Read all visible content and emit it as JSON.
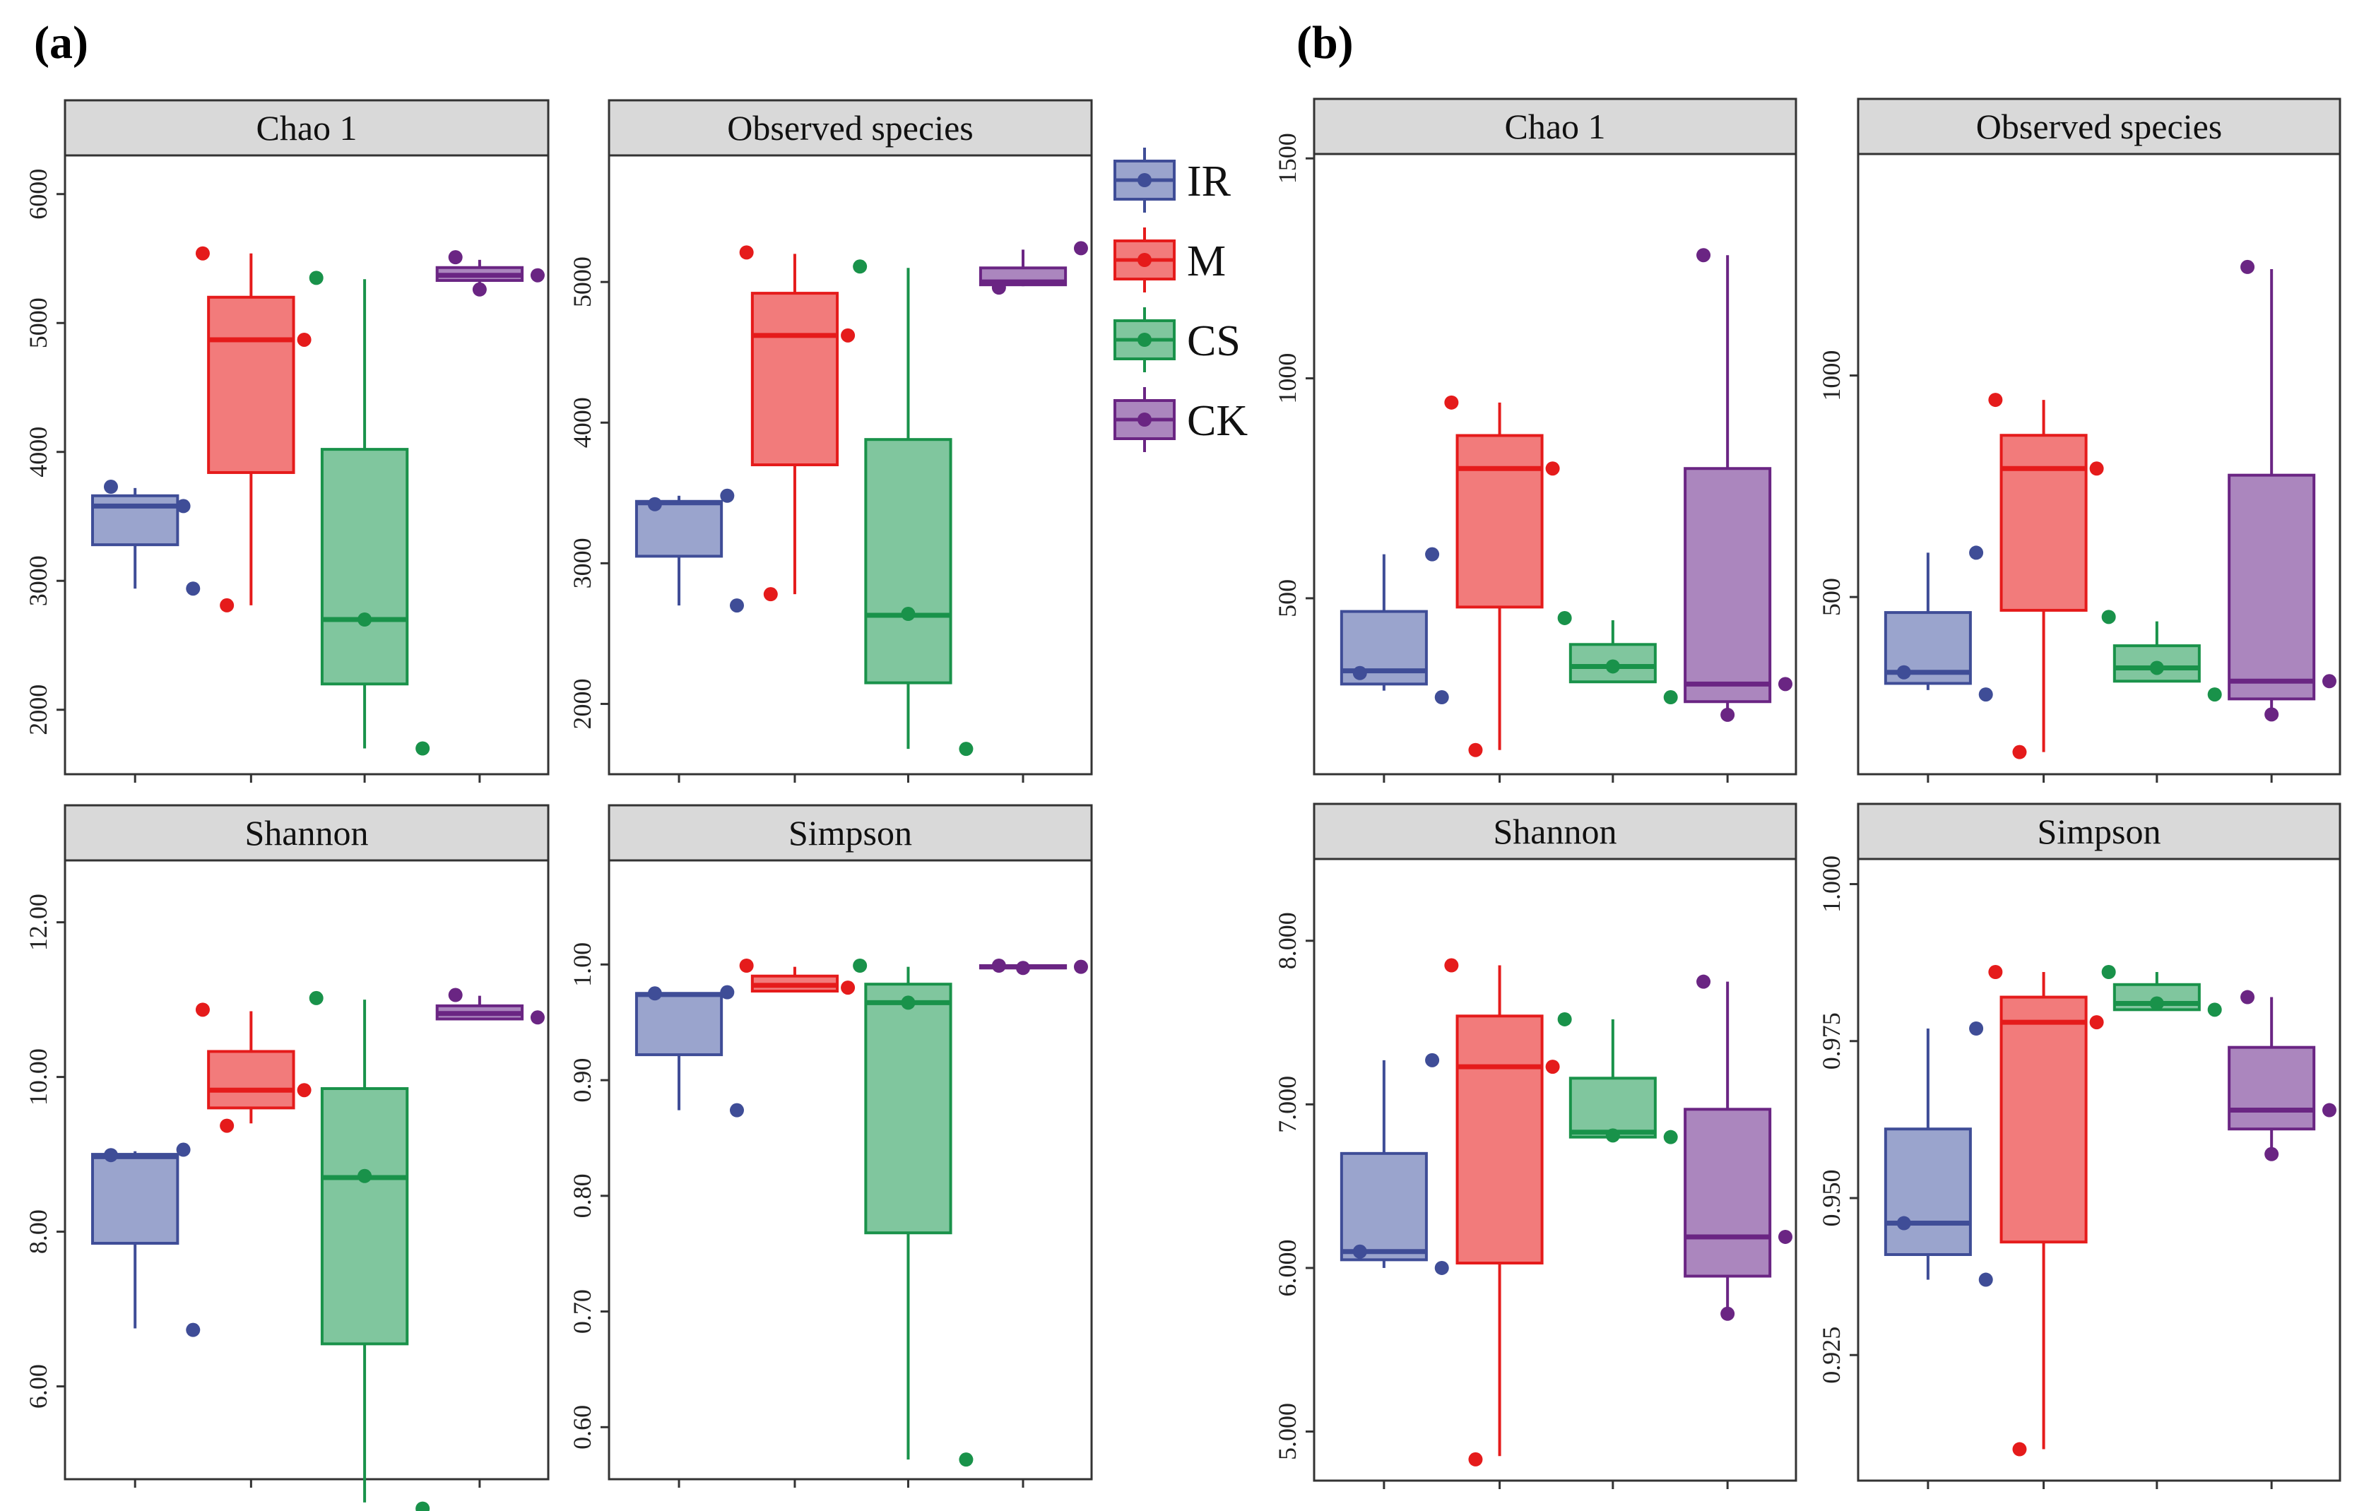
{
  "figure_labels": [
    "(a)",
    "(b)"
  ],
  "colors": {
    "IR": {
      "fill": "#9aa4cd",
      "stroke": "#3f4d97",
      "point": "#3f4d97"
    },
    "M": {
      "fill": "#f27b7b",
      "stroke": "#e51b1b",
      "point": "#e51b1b"
    },
    "CS": {
      "fill": "#80c69e",
      "stroke": "#19924a",
      "point": "#19924a"
    },
    "CK": {
      "fill": "#ab86be",
      "stroke": "#6a2583",
      "point": "#6a2583"
    },
    "strip_fill": "#d9d9d9",
    "frame": "#333333"
  },
  "legend": {
    "entries": [
      {
        "key": "IR",
        "label": "IR"
      },
      {
        "key": "M",
        "label": "M"
      },
      {
        "key": "CS",
        "label": "CS"
      },
      {
        "key": "CK",
        "label": "CK"
      }
    ]
  },
  "chart_data": [
    {
      "id": "a-chao1",
      "group": "(a)",
      "type": "boxplot",
      "title": "Chao 1",
      "ylim": [
        1500,
        6300
      ],
      "yticks": [
        2000,
        3000,
        4000,
        5000,
        6000
      ],
      "ytick_labels": [
        "2000",
        "3000",
        "4000",
        "5000",
        "6000"
      ],
      "series": [
        {
          "name": "IR",
          "whisker_low": 2940,
          "q1": 3280,
          "median": 3580,
          "q3": 3660,
          "whisker_high": 3720,
          "points": [
            3580,
            3730,
            2940
          ]
        },
        {
          "name": "M",
          "whisker_low": 2810,
          "q1": 3840,
          "median": 4870,
          "q3": 5200,
          "whisker_high": 5540,
          "points": [
            5540,
            4870,
            2810
          ]
        },
        {
          "name": "CS",
          "whisker_low": 1700,
          "q1": 2200,
          "median": 2700,
          "q3": 4020,
          "whisker_high": 5340,
          "points": [
            5350,
            2700,
            1700
          ]
        },
        {
          "name": "CK",
          "whisker_low": 5290,
          "q1": 5330,
          "median": 5370,
          "q3": 5430,
          "whisker_high": 5490,
          "points": [
            5510,
            5370,
            5260
          ]
        }
      ]
    },
    {
      "id": "a-observed",
      "group": "(a)",
      "type": "boxplot",
      "title": "Observed species",
      "ylim": [
        1500,
        5900
      ],
      "yticks": [
        2000,
        3000,
        4000,
        5000
      ],
      "ytick_labels": [
        "2000",
        "3000",
        "4000",
        "5000"
      ],
      "series": [
        {
          "name": "IR",
          "whisker_low": 2700,
          "q1": 3050,
          "median": 3430,
          "q3": 3440,
          "whisker_high": 3480,
          "points": [
            3480,
            3420,
            2700
          ]
        },
        {
          "name": "M",
          "whisker_low": 2780,
          "q1": 3700,
          "median": 4620,
          "q3": 4920,
          "whisker_high": 5200,
          "points": [
            5210,
            4620,
            2780
          ]
        },
        {
          "name": "CS",
          "whisker_low": 1680,
          "q1": 2150,
          "median": 2630,
          "q3": 3880,
          "whisker_high": 5100,
          "points": [
            5110,
            2640,
            1680
          ]
        },
        {
          "name": "CK",
          "whisker_low": 4970,
          "q1": 4980,
          "median": 5000,
          "q3": 5100,
          "whisker_high": 5230,
          "points": [
            4960,
            5240
          ]
        }
      ]
    },
    {
      "id": "a-shannon",
      "group": "(a)",
      "type": "boxplot",
      "title": "Shannon",
      "ylim": [
        4.8,
        12.8
      ],
      "yticks": [
        6,
        8,
        10,
        12
      ],
      "ytick_labels": [
        "6.00",
        "8.00",
        "10.00",
        "12.00"
      ],
      "series": [
        {
          "name": "IR",
          "whisker_low": 6.75,
          "q1": 7.85,
          "median": 8.97,
          "q3": 9.0,
          "whisker_high": 9.04,
          "points": [
            9.06,
            8.99,
            6.73
          ]
        },
        {
          "name": "M",
          "whisker_low": 9.4,
          "q1": 9.6,
          "median": 9.83,
          "q3": 10.33,
          "whisker_high": 10.85,
          "points": [
            10.87,
            9.83,
            9.37
          ]
        },
        {
          "name": "CS",
          "whisker_low": 4.5,
          "q1": 6.55,
          "median": 8.7,
          "q3": 9.85,
          "whisker_high": 11.0,
          "points": [
            11.02,
            8.72,
            4.42
          ]
        },
        {
          "name": "CK",
          "whisker_low": 10.74,
          "q1": 10.75,
          "median": 10.82,
          "q3": 10.92,
          "whisker_high": 11.05,
          "points": [
            11.06,
            10.77
          ]
        }
      ]
    },
    {
      "id": "a-simpson",
      "group": "(a)",
      "type": "boxplot",
      "title": "Simpson",
      "ylim": [
        0.555,
        1.09
      ],
      "yticks": [
        0.6,
        0.7,
        0.8,
        0.9,
        1.0
      ],
      "ytick_labels": [
        "0.60",
        "0.70",
        "0.80",
        "0.90",
        "1.00"
      ],
      "series": [
        {
          "name": "IR",
          "whisker_low": 0.874,
          "q1": 0.922,
          "median": 0.974,
          "q3": 0.975,
          "whisker_high": 0.976,
          "points": [
            0.976,
            0.975,
            0.874
          ]
        },
        {
          "name": "M",
          "whisker_low": 0.977,
          "q1": 0.977,
          "median": 0.982,
          "q3": 0.99,
          "whisker_high": 0.998,
          "points": [
            0.999,
            0.98
          ]
        },
        {
          "name": "CS",
          "whisker_low": 0.572,
          "q1": 0.768,
          "median": 0.967,
          "q3": 0.983,
          "whisker_high": 0.998,
          "points": [
            0.999,
            0.967,
            0.572
          ]
        },
        {
          "name": "CK",
          "whisker_low": 0.997,
          "q1": 0.997,
          "median": 0.998,
          "q3": 0.999,
          "whisker_high": 1.0,
          "points": [
            0.999,
            0.998,
            0.997
          ]
        }
      ]
    },
    {
      "id": "b-chao1",
      "group": "(b)",
      "type": "boxplot",
      "title": "Chao 1",
      "ylim": [
        100,
        1510
      ],
      "yticks": [
        500,
        1000,
        1500
      ],
      "ytick_labels": [
        "500",
        "1000",
        "1500"
      ],
      "series": [
        {
          "name": "IR",
          "whisker_low": 290,
          "q1": 305,
          "median": 335,
          "q3": 470,
          "whisker_high": 600,
          "points": [
            600,
            330,
            275
          ]
        },
        {
          "name": "M",
          "whisker_low": 155,
          "q1": 480,
          "median": 795,
          "q3": 870,
          "whisker_high": 945,
          "points": [
            945,
            795,
            155
          ]
        },
        {
          "name": "CS",
          "whisker_low": 310,
          "q1": 310,
          "median": 345,
          "q3": 395,
          "whisker_high": 450,
          "points": [
            455,
            345,
            275
          ]
        },
        {
          "name": "CK",
          "whisker_low": 235,
          "q1": 265,
          "median": 305,
          "q3": 795,
          "whisker_high": 1280,
          "points": [
            1280,
            305,
            235
          ]
        }
      ]
    },
    {
      "id": "b-observed",
      "group": "(b)",
      "type": "boxplot",
      "title": "Observed species",
      "ylim": [
        100,
        1500
      ],
      "yticks": [
        500,
        1000
      ],
      "ytick_labels": [
        "500",
        "1000"
      ],
      "series": [
        {
          "name": "IR",
          "whisker_low": 290,
          "q1": 305,
          "median": 330,
          "q3": 465,
          "whisker_high": 600,
          "points": [
            600,
            330,
            280
          ]
        },
        {
          "name": "M",
          "whisker_low": 150,
          "q1": 470,
          "median": 790,
          "q3": 865,
          "whisker_high": 945,
          "points": [
            945,
            790,
            150
          ]
        },
        {
          "name": "CS",
          "whisker_low": 310,
          "q1": 310,
          "median": 340,
          "q3": 390,
          "whisker_high": 445,
          "points": [
            455,
            340,
            280
          ]
        },
        {
          "name": "CK",
          "whisker_low": 235,
          "q1": 270,
          "median": 310,
          "q3": 775,
          "whisker_high": 1240,
          "points": [
            1245,
            310,
            235
          ]
        }
      ]
    },
    {
      "id": "b-shannon",
      "group": "(b)",
      "type": "boxplot",
      "title": "Shannon",
      "ylim": [
        4.7,
        8.5
      ],
      "yticks": [
        5,
        6,
        7,
        8
      ],
      "ytick_labels": [
        "5.000",
        "6.000",
        "7.000",
        "8.000"
      ],
      "series": [
        {
          "name": "IR",
          "whisker_low": 6.0,
          "q1": 6.05,
          "median": 6.1,
          "q3": 6.7,
          "whisker_high": 7.27,
          "points": [
            7.27,
            6.1,
            6.0
          ]
        },
        {
          "name": "M",
          "whisker_low": 4.85,
          "q1": 6.03,
          "median": 7.23,
          "q3": 7.54,
          "whisker_high": 7.85,
          "points": [
            7.85,
            7.23,
            4.83
          ]
        },
        {
          "name": "CS",
          "whisker_low": 6.8,
          "q1": 6.8,
          "median": 6.83,
          "q3": 7.16,
          "whisker_high": 7.52,
          "points": [
            7.52,
            6.81,
            6.8
          ]
        },
        {
          "name": "CK",
          "whisker_low": 5.73,
          "q1": 5.95,
          "median": 6.19,
          "q3": 6.97,
          "whisker_high": 7.75,
          "points": [
            7.75,
            6.19,
            5.72
          ]
        }
      ]
    },
    {
      "id": "b-simpson",
      "group": "(b)",
      "type": "boxplot",
      "title": "Simpson",
      "ylim": [
        0.905,
        1.004
      ],
      "yticks": [
        0.925,
        0.95,
        0.975,
        1.0
      ],
      "ytick_labels": [
        "0.925",
        "0.950",
        "0.975",
        "1.000"
      ],
      "series": [
        {
          "name": "IR",
          "whisker_low": 0.937,
          "q1": 0.941,
          "median": 0.946,
          "q3": 0.961,
          "whisker_high": 0.977,
          "points": [
            0.977,
            0.946,
            0.937
          ]
        },
        {
          "name": "M",
          "whisker_low": 0.91,
          "q1": 0.943,
          "median": 0.978,
          "q3": 0.982,
          "whisker_high": 0.986,
          "points": [
            0.986,
            0.978,
            0.91
          ]
        },
        {
          "name": "CS",
          "whisker_low": 0.98,
          "q1": 0.98,
          "median": 0.981,
          "q3": 0.984,
          "whisker_high": 0.986,
          "points": [
            0.986,
            0.981,
            0.98
          ]
        },
        {
          "name": "CK",
          "whisker_low": 0.958,
          "q1": 0.961,
          "median": 0.964,
          "q3": 0.974,
          "whisker_high": 0.982,
          "points": [
            0.982,
            0.964,
            0.957
          ]
        }
      ]
    }
  ]
}
